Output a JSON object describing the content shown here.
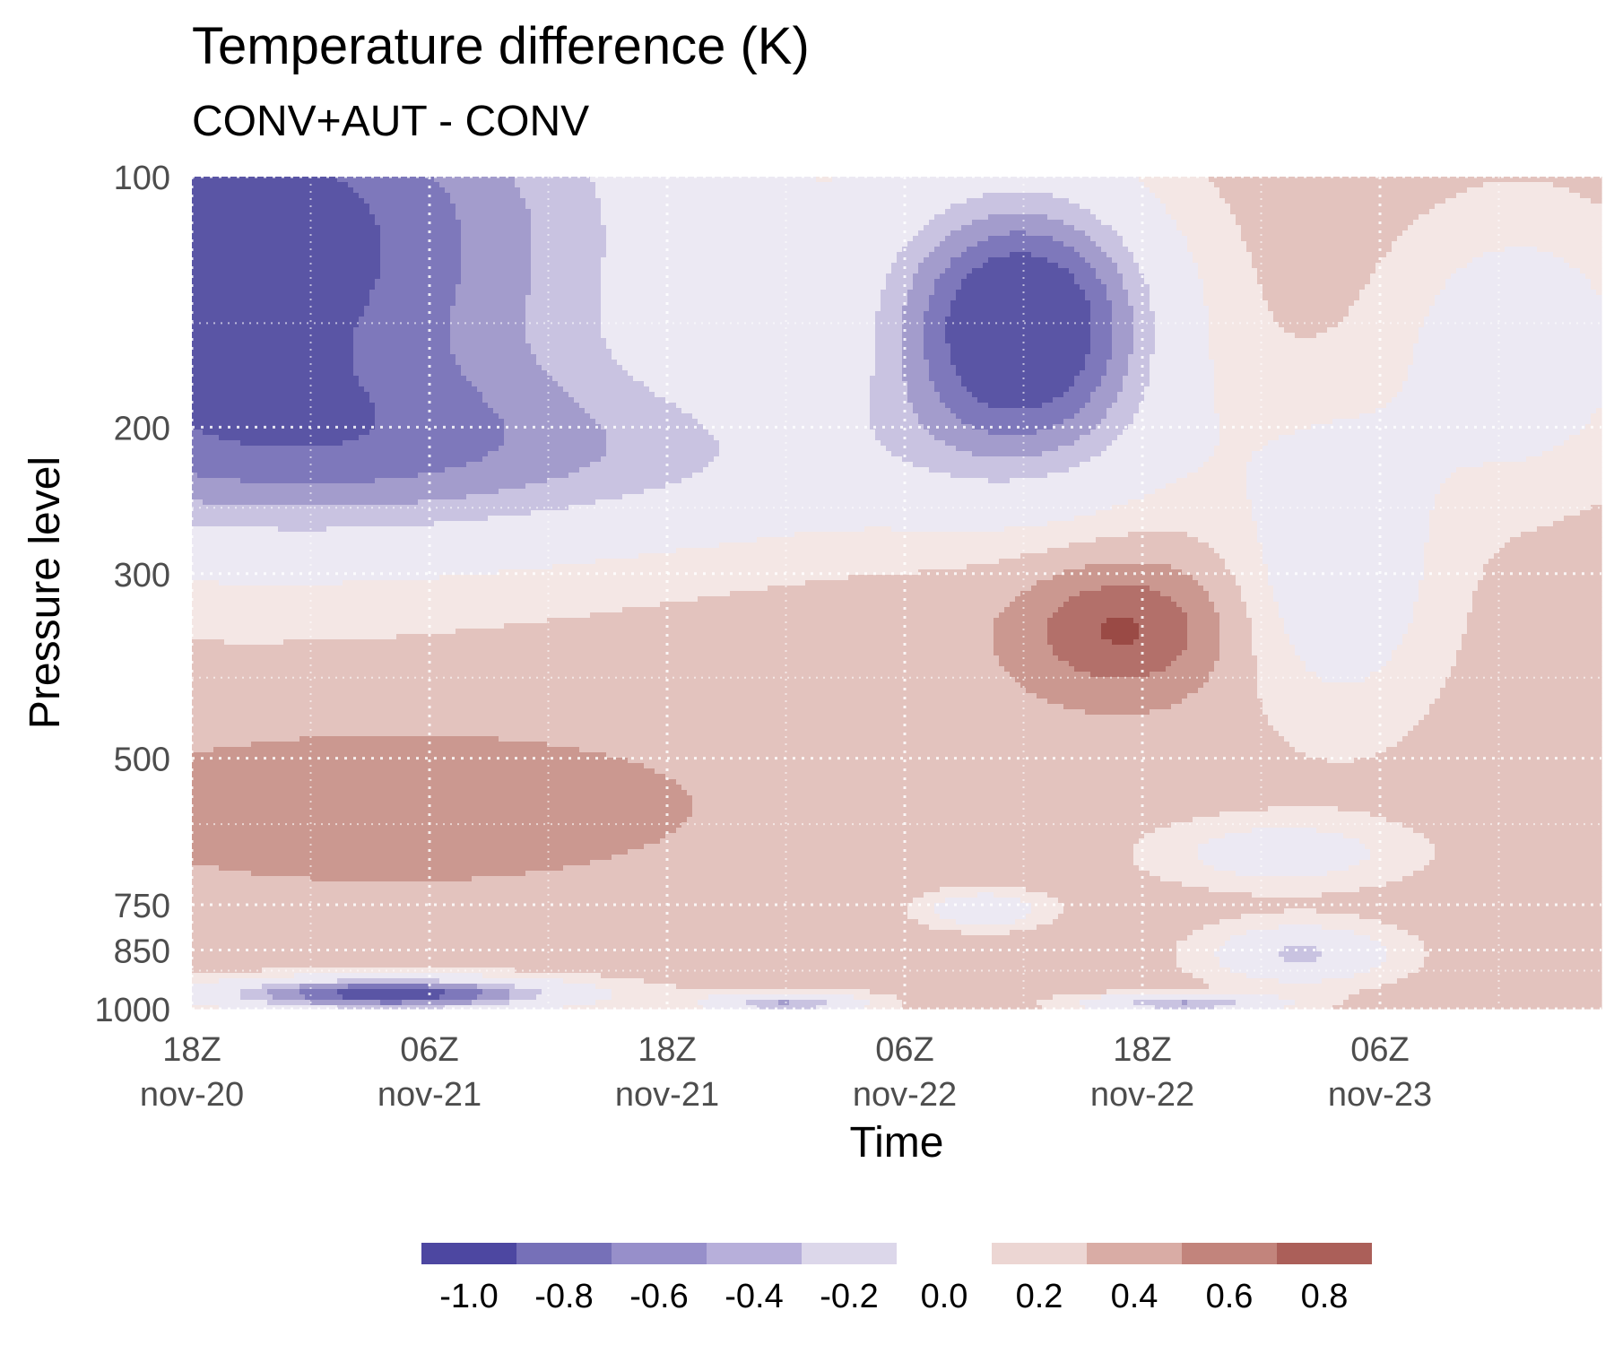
{
  "chart_data": {
    "type": "heatmap",
    "title": "Temperature difference (K)",
    "subtitle": "CONV+AUT - CONV",
    "xlabel": "Time",
    "ylabel": "Pressure level",
    "x_ticks": [
      {
        "hour": 0,
        "line1": "18Z",
        "line2": "nov-20"
      },
      {
        "hour": 12,
        "line1": "06Z",
        "line2": "nov-21"
      },
      {
        "hour": 24,
        "line1": "18Z",
        "line2": "nov-21"
      },
      {
        "hour": 36,
        "line1": "06Z",
        "line2": "nov-22"
      },
      {
        "hour": 48,
        "line1": "18Z",
        "line2": "nov-22"
      },
      {
        "hour": 60,
        "line1": "06Z",
        "line2": "nov-23"
      }
    ],
    "x_range_hours": [
      0,
      71
    ],
    "y_scale": "log",
    "y_ticks": [
      100,
      200,
      300,
      500,
      750,
      850,
      1000
    ],
    "y_range": [
      100,
      1000
    ],
    "grid": "dotted",
    "colors": {
      "-1.0": "#5a55a5",
      "-0.8": "#7e78bb",
      "-0.6": "#a39ccc",
      "-0.4": "#c9c3e1",
      "-0.2": "#ece9f3",
      "0.2": "#f4e7e5",
      "0.4": "#e3c3be",
      "0.6": "#cb9890",
      "0.8": "#b3706a",
      "1.0": "#9a4a45"
    },
    "legend": {
      "position": "bottom",
      "labels": [
        "-1.0",
        "-0.8",
        "-0.6",
        "-0.4",
        "-0.2",
        "0.0",
        "0.2",
        "0.4",
        "0.6",
        "0.8"
      ],
      "negative_colors": [
        "#4d47a1",
        "#7670b8",
        "#978fca",
        "#b7afda",
        "#dcd7ea"
      ],
      "positive_colors": [
        "#ecd6d3",
        "#d9aca5",
        "#c2847c",
        "#ab5f59"
      ]
    },
    "base_value": 0.3,
    "features": [
      {
        "t": 0,
        "p": 100,
        "v": -0.9,
        "st": 24,
        "sl": 0.55
      },
      {
        "t": 3,
        "p": 175,
        "v": -0.45,
        "st": 20,
        "sl": 0.5
      },
      {
        "t": 42,
        "p": 150,
        "v": -1.3,
        "st": 7,
        "sl": 0.38
      },
      {
        "t": 16,
        "p": 220,
        "v": -0.25,
        "st": 32,
        "sl": 0.25
      },
      {
        "t": 10,
        "p": 960,
        "v": -1.15,
        "st": 9,
        "sl": 0.045
      },
      {
        "t": 30,
        "p": 985,
        "v": -0.6,
        "st": 4,
        "sl": 0.03
      },
      {
        "t": 50,
        "p": 985,
        "v": -0.6,
        "st": 5,
        "sl": 0.025
      },
      {
        "t": 56,
        "p": 860,
        "v": -0.45,
        "st": 4.5,
        "sl": 0.08
      },
      {
        "t": 10,
        "p": 570,
        "v": 0.55,
        "st": 16,
        "sl": 0.22
      },
      {
        "t": 47,
        "p": 350,
        "v": 0.8,
        "st": 5,
        "sl": 0.18
      },
      {
        "t": 45,
        "p": 300,
        "v": 0.35,
        "st": 11,
        "sl": 0.35
      },
      {
        "t": 58,
        "p": 300,
        "v": -0.25,
        "st": 5,
        "sl": 0.4
      },
      {
        "t": 55,
        "p": 650,
        "v": -0.2,
        "st": 6,
        "sl": 0.09
      },
      {
        "t": 67,
        "p": 160,
        "v": -0.25,
        "st": 6,
        "sl": 0.35
      },
      {
        "t": 71,
        "p": 580,
        "v": 0.4,
        "st": 3,
        "sl": 0.15
      },
      {
        "t": 40,
        "p": 760,
        "v": -0.3,
        "st": 3,
        "sl": 0.05
      }
    ]
  }
}
